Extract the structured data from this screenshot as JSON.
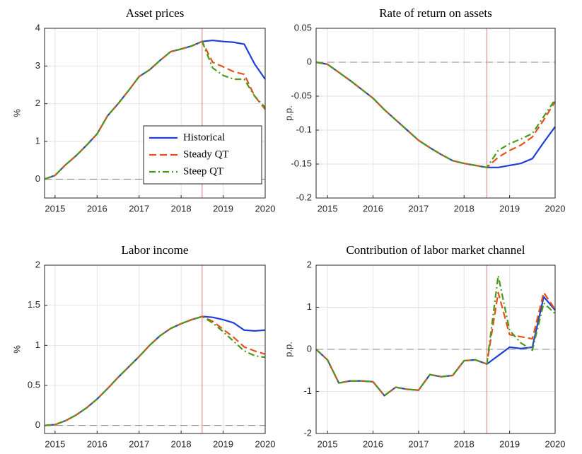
{
  "chart_data": [
    {
      "type": "line",
      "title": "Asset prices",
      "ylabel": "%",
      "x": [
        2014.75,
        2015,
        2015.25,
        2015.5,
        2015.75,
        2016,
        2016.25,
        2016.5,
        2016.75,
        2017,
        2017.25,
        2017.5,
        2017.75,
        2018,
        2018.25,
        2018.5,
        2018.75,
        2019,
        2019.25,
        2019.5,
        2019.75,
        2020
      ],
      "xlim": [
        2014.75,
        2020
      ],
      "xticks": [
        2015,
        2016,
        2017,
        2018,
        2019,
        2020
      ],
      "ylim": [
        -0.5,
        4
      ],
      "yticks": [
        0,
        1,
        2,
        3,
        4
      ],
      "grid": true,
      "hline": 0,
      "vline": 2018.5,
      "legend": "southeast",
      "series": [
        {
          "name": "Historical",
          "color": "#1f3fd8",
          "dash": "solid",
          "values": [
            0,
            0.1,
            0.38,
            0.62,
            0.9,
            1.2,
            1.68,
            2.0,
            2.35,
            2.72,
            2.9,
            3.15,
            3.38,
            3.45,
            3.53,
            3.65,
            3.68,
            3.65,
            3.63,
            3.58,
            3.05,
            2.65
          ]
        },
        {
          "name": "Steady QT",
          "color": "#e8501a",
          "dash": "dashed",
          "values": [
            0,
            0.1,
            0.38,
            0.62,
            0.9,
            1.2,
            1.68,
            2.0,
            2.35,
            2.72,
            2.9,
            3.15,
            3.38,
            3.45,
            3.53,
            3.65,
            3.1,
            2.98,
            2.85,
            2.78,
            2.2,
            1.85
          ]
        },
        {
          "name": "Steep QT",
          "color": "#4a9a1a",
          "dash": "dashdot",
          "values": [
            0,
            0.1,
            0.38,
            0.62,
            0.9,
            1.2,
            1.68,
            2.0,
            2.35,
            2.72,
            2.9,
            3.15,
            3.38,
            3.45,
            3.53,
            3.65,
            2.95,
            2.75,
            2.65,
            2.65,
            2.2,
            1.9
          ]
        }
      ]
    },
    {
      "type": "line",
      "title": "Rate of return on assets",
      "ylabel": "p.p.",
      "x": [
        2014.75,
        2015,
        2015.25,
        2015.5,
        2015.75,
        2016,
        2016.25,
        2016.5,
        2016.75,
        2017,
        2017.25,
        2017.5,
        2017.75,
        2018,
        2018.25,
        2018.5,
        2018.75,
        2019,
        2019.25,
        2019.5,
        2019.75,
        2020
      ],
      "xlim": [
        2014.75,
        2020
      ],
      "xticks": [
        2015,
        2016,
        2017,
        2018,
        2019,
        2020
      ],
      "ylim": [
        -0.2,
        0.05
      ],
      "yticks": [
        -0.2,
        -0.15,
        -0.1,
        -0.05,
        0,
        0.05
      ],
      "grid": true,
      "hline": 0,
      "vline": 2018.5,
      "series": [
        {
          "color": "#1f3fd8",
          "dash": "solid",
          "values": [
            0,
            -0.003,
            -0.015,
            -0.027,
            -0.04,
            -0.053,
            -0.07,
            -0.085,
            -0.1,
            -0.115,
            -0.126,
            -0.136,
            -0.145,
            -0.149,
            -0.152,
            -0.155,
            -0.155,
            -0.152,
            -0.149,
            -0.142,
            -0.118,
            -0.095
          ]
        },
        {
          "color": "#e8501a",
          "dash": "dashed",
          "values": [
            0,
            -0.003,
            -0.015,
            -0.027,
            -0.04,
            -0.053,
            -0.07,
            -0.085,
            -0.1,
            -0.115,
            -0.126,
            -0.136,
            -0.145,
            -0.149,
            -0.152,
            -0.155,
            -0.14,
            -0.13,
            -0.122,
            -0.11,
            -0.085,
            -0.058
          ]
        },
        {
          "color": "#4a9a1a",
          "dash": "dashdot",
          "values": [
            0,
            -0.003,
            -0.015,
            -0.027,
            -0.04,
            -0.053,
            -0.07,
            -0.085,
            -0.1,
            -0.115,
            -0.126,
            -0.136,
            -0.145,
            -0.149,
            -0.152,
            -0.155,
            -0.13,
            -0.12,
            -0.113,
            -0.105,
            -0.08,
            -0.055
          ]
        }
      ]
    },
    {
      "type": "line",
      "title": "Labor income",
      "ylabel": "%",
      "x": [
        2014.75,
        2015,
        2015.25,
        2015.5,
        2015.75,
        2016,
        2016.25,
        2016.5,
        2016.75,
        2017,
        2017.25,
        2017.5,
        2017.75,
        2018,
        2018.25,
        2018.5,
        2018.75,
        2019,
        2019.25,
        2019.5,
        2019.75,
        2020
      ],
      "xlim": [
        2014.75,
        2020
      ],
      "xticks": [
        2015,
        2016,
        2017,
        2018,
        2019,
        2020
      ],
      "ylim": [
        -0.1,
        2
      ],
      "yticks": [
        0,
        0.5,
        1,
        1.5,
        2
      ],
      "grid": true,
      "hline": 0,
      "vline": 2018.5,
      "series": [
        {
          "color": "#1f3fd8",
          "dash": "solid",
          "values": [
            0,
            0.01,
            0.06,
            0.13,
            0.22,
            0.33,
            0.46,
            0.6,
            0.73,
            0.86,
            1.0,
            1.12,
            1.21,
            1.27,
            1.32,
            1.36,
            1.35,
            1.32,
            1.28,
            1.19,
            1.18,
            1.19
          ]
        },
        {
          "color": "#e8501a",
          "dash": "dashed",
          "values": [
            0,
            0.01,
            0.06,
            0.13,
            0.22,
            0.33,
            0.46,
            0.6,
            0.73,
            0.86,
            1.0,
            1.12,
            1.21,
            1.27,
            1.32,
            1.36,
            1.3,
            1.2,
            1.1,
            0.98,
            0.93,
            0.89
          ]
        },
        {
          "color": "#4a9a1a",
          "dash": "dashdot",
          "values": [
            0,
            0.01,
            0.06,
            0.13,
            0.22,
            0.33,
            0.46,
            0.6,
            0.73,
            0.86,
            1.0,
            1.12,
            1.21,
            1.27,
            1.32,
            1.36,
            1.28,
            1.17,
            1.05,
            0.93,
            0.87,
            0.85
          ]
        }
      ]
    },
    {
      "type": "line",
      "title": "Contribution of labor market channel",
      "ylabel": "p.p.",
      "x": [
        2014.75,
        2015,
        2015.25,
        2015.5,
        2015.75,
        2016,
        2016.25,
        2016.5,
        2016.75,
        2017,
        2017.25,
        2017.5,
        2017.75,
        2018,
        2018.25,
        2018.5,
        2018.75,
        2019,
        2019.25,
        2019.5,
        2019.75,
        2020
      ],
      "xlim": [
        2014.75,
        2020
      ],
      "xticks": [
        2015,
        2016,
        2017,
        2018,
        2019,
        2020
      ],
      "ylim": [
        -2,
        2
      ],
      "yticks": [
        -2,
        -1,
        0,
        1,
        2
      ],
      "grid": true,
      "hline": 0,
      "vline": 2018.5,
      "series": [
        {
          "color": "#1f3fd8",
          "dash": "solid",
          "values": [
            0,
            -0.25,
            -0.8,
            -0.75,
            -0.75,
            -0.77,
            -1.1,
            -0.9,
            -0.95,
            -0.97,
            -0.6,
            -0.65,
            -0.62,
            -0.27,
            -0.25,
            -0.35,
            -0.15,
            0.05,
            0.02,
            0.05,
            1.25,
            0.93
          ]
        },
        {
          "color": "#e8501a",
          "dash": "dashed",
          "values": [
            0,
            -0.25,
            -0.8,
            -0.75,
            -0.75,
            -0.77,
            -1.1,
            -0.9,
            -0.95,
            -0.97,
            -0.6,
            -0.65,
            -0.62,
            -0.27,
            -0.25,
            -0.35,
            1.35,
            0.35,
            0.3,
            0.25,
            1.35,
            0.95
          ]
        },
        {
          "color": "#4a9a1a",
          "dash": "dashdot",
          "values": [
            0,
            -0.25,
            -0.8,
            -0.75,
            -0.75,
            -0.77,
            -1.1,
            -0.9,
            -0.95,
            -0.97,
            -0.6,
            -0.65,
            -0.62,
            -0.27,
            -0.25,
            -0.35,
            1.75,
            0.45,
            0.15,
            -0.02,
            1.1,
            0.85
          ]
        }
      ]
    }
  ]
}
